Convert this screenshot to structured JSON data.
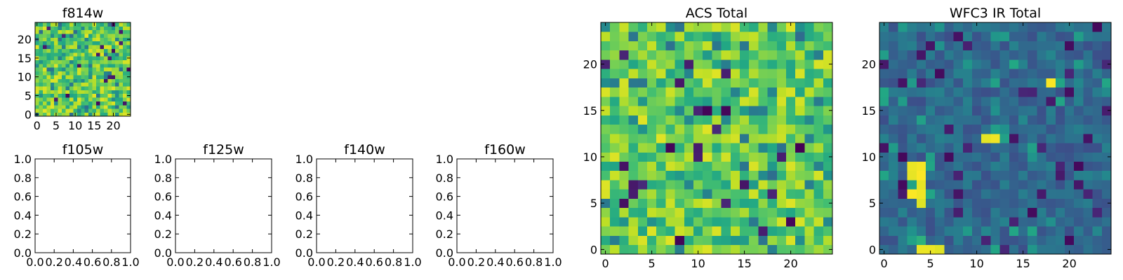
{
  "chart_data": [
    {
      "type": "heatmap",
      "id": "f814w",
      "title": "f814w",
      "nx": 25,
      "ny": 25,
      "xlim": [
        -0.5,
        24.5
      ],
      "ylim": [
        -0.5,
        24.5
      ],
      "xticks": [
        0,
        5,
        10,
        15,
        20
      ],
      "xticklabels": [
        "0",
        "5",
        "10",
        "15",
        "20"
      ],
      "yticks": [
        0,
        5,
        10,
        15,
        20
      ],
      "yticklabels": [
        "0",
        "5",
        "10",
        "15",
        "20"
      ],
      "colormap": "viridis",
      "description_of_values": "noise-like intensities, mostly high (green-yellow)"
    },
    {
      "type": "empty",
      "id": "f105w",
      "title": "f105w",
      "xlim": [
        0,
        1
      ],
      "ylim": [
        0,
        1
      ],
      "xticklabels": [
        "0.0",
        "0.2",
        "0.4",
        "0.6",
        "0.8",
        "1.0"
      ],
      "yticklabels": [
        "0.0",
        "0.2",
        "0.4",
        "0.6",
        "0.8",
        "1.0"
      ]
    },
    {
      "type": "empty",
      "id": "f125w",
      "title": "f125w",
      "xlim": [
        0,
        1
      ],
      "ylim": [
        0,
        1
      ],
      "xticklabels": [
        "0.0",
        "0.2",
        "0.4",
        "0.6",
        "0.8",
        "1.0"
      ],
      "yticklabels": [
        "0.0",
        "0.2",
        "0.4",
        "0.6",
        "0.8",
        "1.0"
      ]
    },
    {
      "type": "empty",
      "id": "f140w",
      "title": "f140w",
      "xlim": [
        0,
        1
      ],
      "ylim": [
        0,
        1
      ],
      "xticklabels": [
        "0.0",
        "0.2",
        "0.4",
        "0.6",
        "0.8",
        "1.0"
      ],
      "yticklabels": [
        "0.0",
        "0.2",
        "0.4",
        "0.6",
        "0.8",
        "1.0"
      ]
    },
    {
      "type": "empty",
      "id": "f160w",
      "title": "f160w",
      "xlim": [
        0,
        1
      ],
      "ylim": [
        0,
        1
      ],
      "xticklabels": [
        "0.0",
        "0.2",
        "0.4",
        "0.6",
        "0.8",
        "1.0"
      ],
      "yticklabels": [
        "0.0",
        "0.2",
        "0.4",
        "0.6",
        "0.8",
        "1.0"
      ]
    },
    {
      "type": "heatmap",
      "id": "acs-total",
      "title": "ACS Total",
      "nx": 25,
      "ny": 25,
      "xlim": [
        -0.5,
        24.5
      ],
      "ylim": [
        -0.5,
        24.5
      ],
      "xticks": [
        0,
        5,
        10,
        15,
        20
      ],
      "xticklabels": [
        "0",
        "5",
        "10",
        "15",
        "20"
      ],
      "yticks": [
        0,
        5,
        10,
        15,
        20
      ],
      "yticklabels": [
        "0",
        "5",
        "10",
        "15",
        "20"
      ],
      "colormap": "viridis",
      "description_of_values": "noise-like intensities, mostly high (green-yellow) with scattered dark pixels"
    },
    {
      "type": "heatmap",
      "id": "wfc3-ir-total",
      "title": "WFC3 IR Total",
      "nx": 25,
      "ny": 25,
      "xlim": [
        -0.5,
        24.5
      ],
      "ylim": [
        -0.5,
        24.5
      ],
      "xticks": [
        0,
        5,
        10,
        15,
        20
      ],
      "xticklabels": [
        "0",
        "5",
        "10",
        "15",
        "20"
      ],
      "yticks": [
        0,
        5,
        10,
        15,
        20
      ],
      "yticklabels": [
        "0",
        "5",
        "10",
        "15",
        "20"
      ],
      "colormap": "viridis",
      "description_of_values": "mostly low (blue-teal) background with bright yellow pixels near x=3-4,y=6-9; x=5,y=0; x=11-12,y=12; x=18,y=18"
    }
  ]
}
